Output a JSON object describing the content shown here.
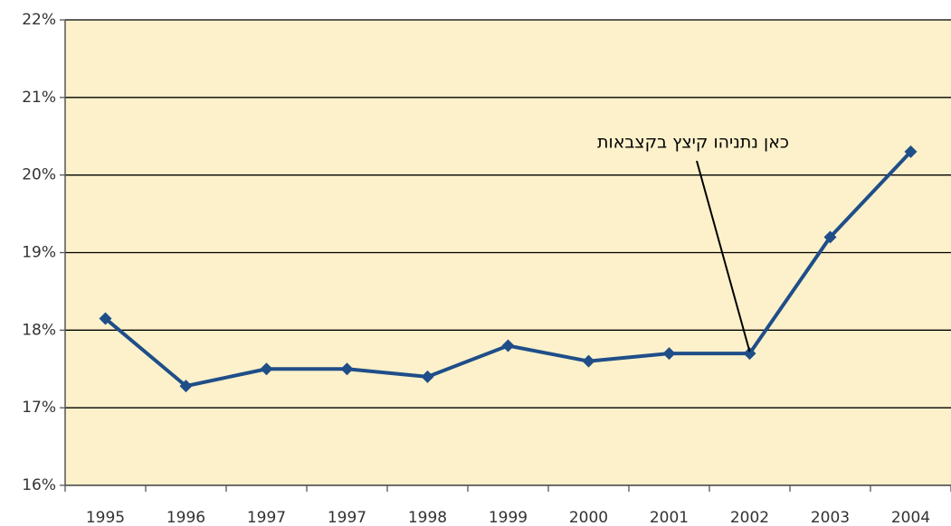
{
  "chart_data": {
    "type": "line",
    "categories": [
      "1995",
      "1996",
      "1997",
      "1997",
      "1998",
      "1999",
      "2000",
      "2001",
      "2002",
      "2003",
      "2004"
    ],
    "values": [
      18.15,
      17.28,
      17.5,
      17.5,
      17.4,
      17.8,
      17.6,
      17.7,
      17.7,
      19.2,
      20.3
    ],
    "color": "#1f4e89",
    "ylim": [
      16,
      22
    ],
    "yticks": [
      {
        "value": 16,
        "label": "16%"
      },
      {
        "value": 17,
        "label": "17%"
      },
      {
        "value": 18,
        "label": "18%"
      },
      {
        "value": 19,
        "label": "19%"
      },
      {
        "value": 20,
        "label": "20%"
      },
      {
        "value": 21,
        "label": "21%"
      },
      {
        "value": 22,
        "label": "22%"
      }
    ],
    "grid": true,
    "annotation": "כאן נתניהו קיצץ בקצבאות"
  }
}
